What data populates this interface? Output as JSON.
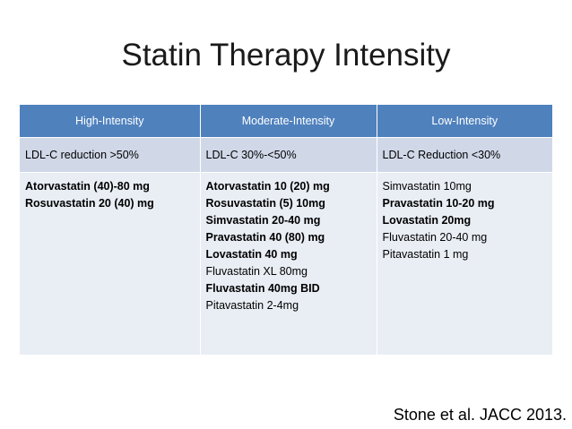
{
  "title": "Statin Therapy Intensity",
  "table": {
    "headers": [
      "High-Intensity",
      "Moderate-Intensity",
      "Low-Intensity"
    ],
    "ldl_row": [
      "LDL-C reduction >50%",
      "LDL-C 30%-<50%",
      "LDL-C Reduction <30%"
    ],
    "drugs": {
      "high": [
        {
          "text": "Atorvastatin (40)-80 mg",
          "bold": true
        },
        {
          "text": "Rosuvastatin 20 (40) mg",
          "bold": true
        }
      ],
      "moderate": [
        {
          "text": "Atorvastatin 10 (20) mg",
          "bold": true
        },
        {
          "text": "Rosuvastatin (5) 10mg",
          "bold": true
        },
        {
          "text": "Simvastatin 20-40 mg",
          "bold": true
        },
        {
          "text": "Pravastatin 40 (80) mg",
          "bold": true
        },
        {
          "text": "Lovastatin 40 mg",
          "bold": true
        },
        {
          "text": "Fluvastatin XL 80mg",
          "bold": false
        },
        {
          "text": "Fluvastatin 40mg BID",
          "bold": true
        },
        {
          "text": "Pitavastatin 2-4mg",
          "bold": false
        }
      ],
      "low": [
        {
          "text": "Simvastatin 10mg",
          "bold": false
        },
        {
          "text": "Pravastatin 10-20 mg",
          "bold": true
        },
        {
          "text": "Lovastatin 20mg",
          "bold": true
        },
        {
          "text": "Fluvastatin 20-40 mg",
          "bold": false
        },
        {
          "text": "Pitavastatin 1 mg",
          "bold": false
        }
      ]
    }
  },
  "citation": "Stone et al. JACC 2013.",
  "colors": {
    "header_bg": "#4f81bd",
    "row1_bg": "#d0d8e8",
    "row2_bg": "#e9edf4"
  }
}
